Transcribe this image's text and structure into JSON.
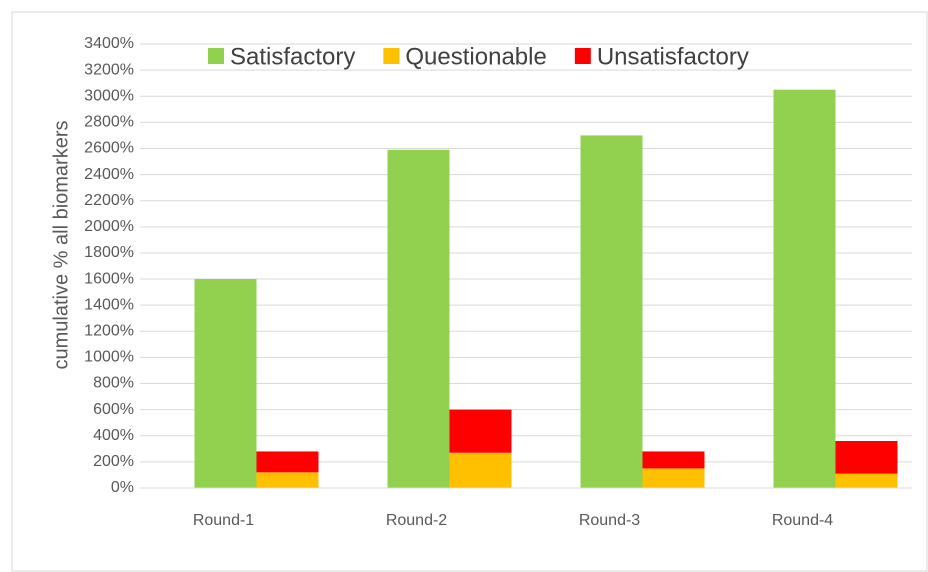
{
  "chart_data": {
    "type": "bar",
    "y_label": "cumulative % all biomarkers",
    "categories": [
      "Round-1",
      "Round-2",
      "Round-3",
      "Round-4"
    ],
    "series": [
      {
        "name": "Satisfactory",
        "color": "#92d050",
        "values": [
          1600,
          2590,
          2700,
          3050
        ]
      },
      {
        "name": "Questionable",
        "color": "#ffc000",
        "values": [
          120,
          270,
          150,
          110
        ]
      },
      {
        "name": "Unsatisfactory",
        "color": "#ff0000",
        "values": [
          160,
          330,
          130,
          250
        ]
      }
    ],
    "ylim": [
      0,
      3400
    ],
    "yticks": [
      {
        "value": 0,
        "label": "0%"
      },
      {
        "value": 200,
        "label": "200%"
      },
      {
        "value": 400,
        "label": "400%"
      },
      {
        "value": 600,
        "label": "600%"
      },
      {
        "value": 800,
        "label": "800%"
      },
      {
        "value": 1000,
        "label": "1000%"
      },
      {
        "value": 1200,
        "label": "1200%"
      },
      {
        "value": 1400,
        "label": "1400%"
      },
      {
        "value": 1600,
        "label": "1600%"
      },
      {
        "value": 1800,
        "label": "1800%"
      },
      {
        "value": 2000,
        "label": "2000%"
      },
      {
        "value": 2200,
        "label": "2200%"
      },
      {
        "value": 2400,
        "label": "2400%"
      },
      {
        "value": 2600,
        "label": "2600%"
      },
      {
        "value": 2800,
        "label": "2800%"
      },
      {
        "value": 3000,
        "label": "3000%"
      },
      {
        "value": 3200,
        "label": "3200%"
      },
      {
        "value": 3400,
        "label": "3400%"
      }
    ],
    "grid": true
  }
}
